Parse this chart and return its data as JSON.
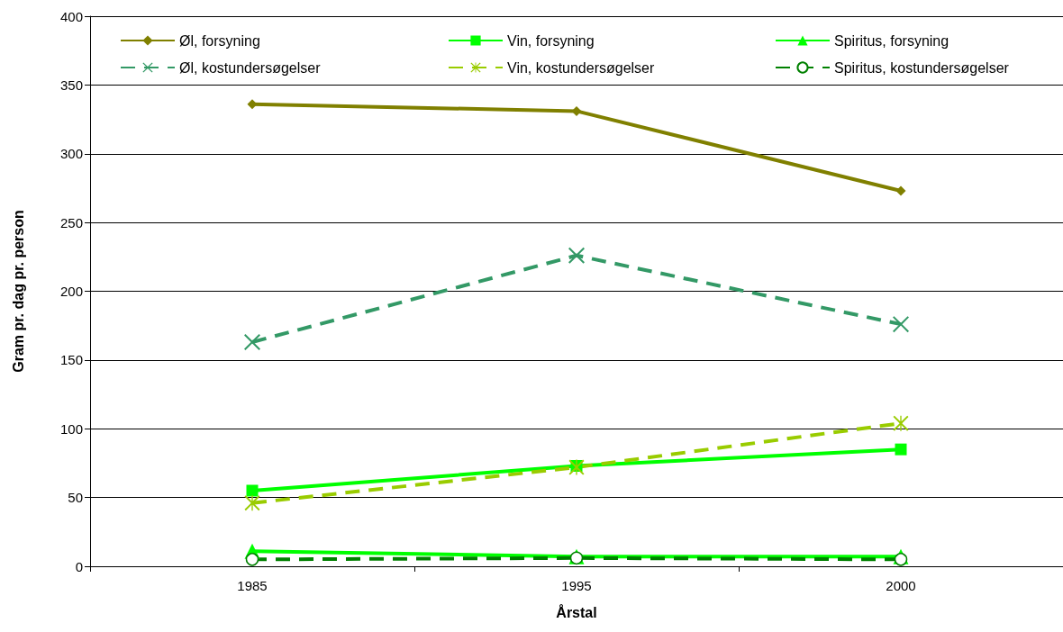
{
  "chart_data": {
    "type": "line",
    "xlabel": "Årstal",
    "ylabel": "Gram pr. dag pr. person",
    "categories": [
      "1985",
      "1995",
      "2000"
    ],
    "ylim": [
      0,
      400
    ],
    "yticks": [
      0,
      50,
      100,
      150,
      200,
      250,
      300,
      350,
      400
    ],
    "grid": "y",
    "legend": "top",
    "series": [
      {
        "name": "Øl, forsyning",
        "color": "#808000",
        "marker": "diamond",
        "line_style": "solid",
        "values": [
          336,
          331,
          273
        ]
      },
      {
        "name": "Vin, forsyning",
        "color": "#00ff00",
        "marker": "square",
        "line_style": "solid",
        "values": [
          55,
          73,
          85
        ]
      },
      {
        "name": "Spiritus, forsyning",
        "color": "#00ff00",
        "marker": "triangle",
        "line_style": "solid",
        "values": [
          11,
          7,
          7
        ]
      },
      {
        "name": "Øl, kostundersøgelser",
        "color": "#339966",
        "marker": "cross",
        "line_style": "dashed",
        "values": [
          163,
          226,
          176
        ]
      },
      {
        "name": "Vin, kostundersøgelser",
        "color": "#99cc00",
        "marker": "star",
        "line_style": "dashed",
        "values": [
          46,
          72,
          104
        ]
      },
      {
        "name": "Spiritus, kostundersøgelser",
        "color": "#008000",
        "marker": "circle",
        "line_style": "dashed",
        "values": [
          5,
          6,
          5
        ]
      }
    ]
  }
}
